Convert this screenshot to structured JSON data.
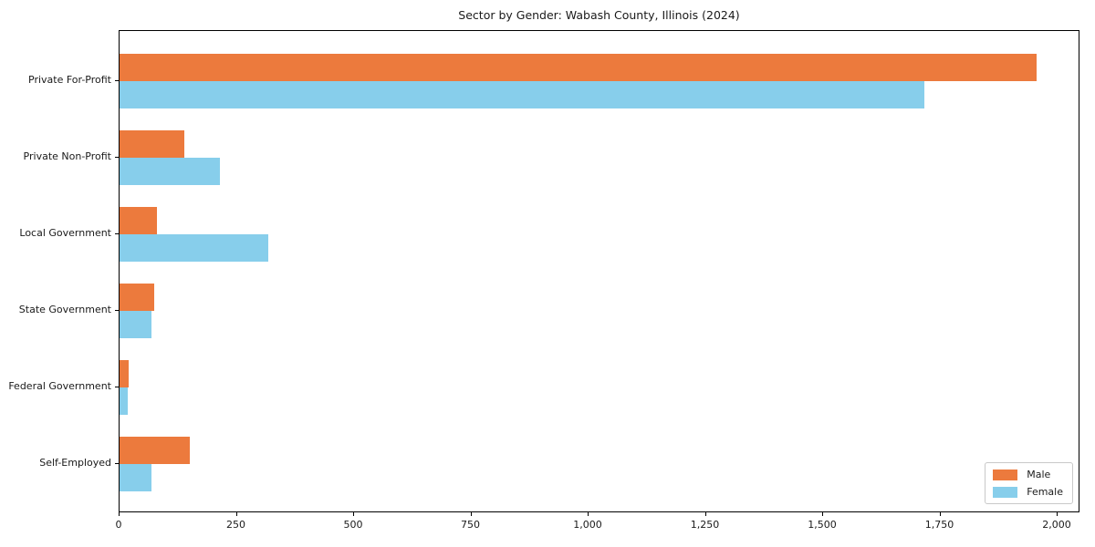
{
  "chart_data": {
    "type": "bar",
    "orientation": "horizontal",
    "title": "Sector by Gender: Wabash County, Illinois (2024)",
    "categories": [
      "Private For-Profit",
      "Private Non-Profit",
      "Local Government",
      "State Government",
      "Federal Government",
      "Self-Employed"
    ],
    "series": [
      {
        "name": "Male",
        "color": "#ec7a3d",
        "values": [
          1955,
          138,
          80,
          73,
          20,
          150
        ]
      },
      {
        "name": "Female",
        "color": "#87ceeb",
        "values": [
          1715,
          214,
          317,
          69,
          18,
          69
        ]
      }
    ],
    "xlabel": "",
    "ylabel": "",
    "xlim": [
      0,
      2000
    ],
    "xticks": [
      0,
      250,
      500,
      750,
      1000,
      1250,
      1500,
      1750,
      2000
    ],
    "xtick_labels": [
      "0",
      "250",
      "500",
      "750",
      "1,000",
      "1,250",
      "1,500",
      "1,750",
      "2,000"
    ],
    "grid": false,
    "legend_position": "lower right",
    "background": "#ffffff",
    "text_color": "#1a1a1a"
  }
}
